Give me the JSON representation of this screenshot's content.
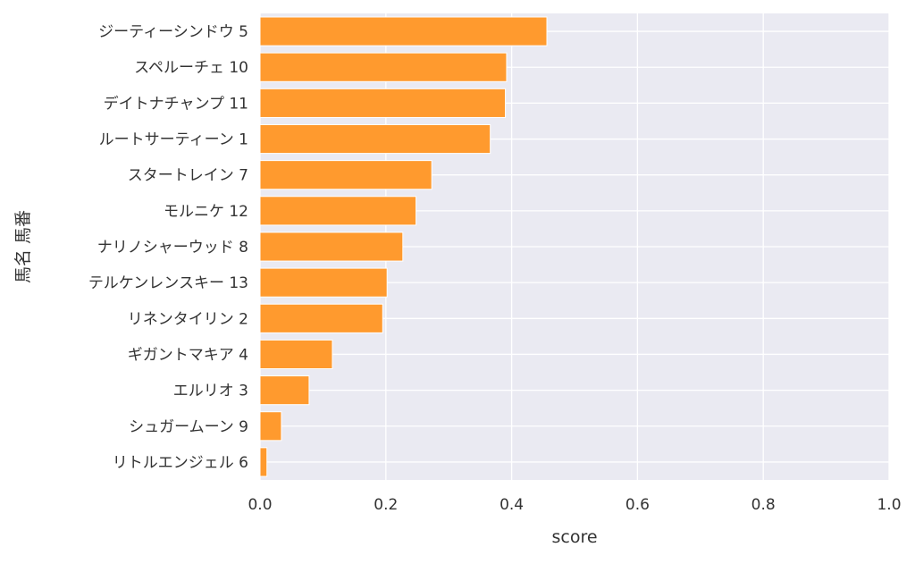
{
  "chart_data": {
    "type": "bar",
    "orientation": "horizontal",
    "categories": [
      "ジーティーシンドウ 5",
      "スペルーチェ 10",
      "デイトナチャンプ 11",
      "ルートサーティーン 1",
      "スタートレイン 7",
      "モルニケ 12",
      "ナリノシャーウッド 8",
      "テルケンレンスキー 13",
      "リネンタイリン 2",
      "ギガントマキア 4",
      "エルリオ 3",
      "シュガームーン 9",
      "リトルエンジェル 6"
    ],
    "values": [
      0.456,
      0.392,
      0.39,
      0.366,
      0.273,
      0.248,
      0.227,
      0.202,
      0.195,
      0.115,
      0.078,
      0.034,
      0.011
    ],
    "title": "",
    "xlabel": "score",
    "ylabel": "馬名 馬番",
    "xlim": [
      0.0,
      1.0
    ],
    "xticks": [
      "0.0",
      "0.2",
      "0.4",
      "0.6",
      "0.8",
      "1.0"
    ],
    "grid": true,
    "colors": {
      "bar": "#ff9a2e",
      "plot_background": "#eaeaf2",
      "grid": "#ffffff"
    }
  }
}
